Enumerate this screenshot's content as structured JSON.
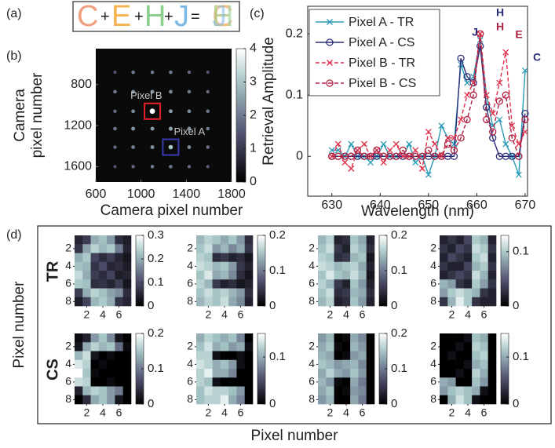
{
  "panel_labels": [
    "(a)",
    "(b)",
    "(c)",
    "(d)"
  ],
  "equation": {
    "letters": [
      {
        "text": "C",
        "color": "#f0a080"
      },
      {
        "text": "E",
        "color": "#f5b450"
      },
      {
        "text": "H",
        "color": "#8ccf8c"
      },
      {
        "text": "J",
        "color": "#7ab8e6"
      }
    ],
    "operators": [
      "+",
      "+",
      "+",
      "="
    ]
  },
  "panel_d": {
    "row_labels": [
      "TR",
      "CS"
    ],
    "xlabel": "Pixel number",
    "ylabel": "Pixel number"
  },
  "chart_data": [
    {
      "type": "spots",
      "xlabel": "Camera pixel number",
      "ylabel": [
        "Camera",
        "pixel number"
      ],
      "x": [
        770,
        930,
        1100,
        1262,
        1425,
        1590
      ],
      "y": [
        680,
        870,
        1060,
        1230,
        1410,
        1600
      ],
      "values": [
        [
          1.5,
          2,
          2,
          2,
          1.8,
          1.5
        ],
        [
          2,
          2.2,
          2.3,
          2.2,
          2,
          1.8
        ],
        [
          1.8,
          2.2,
          4,
          2.4,
          2.2,
          2
        ],
        [
          2,
          2.3,
          2.4,
          2.5,
          2.3,
          2
        ],
        [
          1.8,
          2.1,
          2.3,
          3,
          2.2,
          1.9
        ],
        [
          1.5,
          1.8,
          2,
          2,
          1.8,
          1.6
        ]
      ],
      "xlim": [
        600,
        1800
      ],
      "ylim": [
        450,
        1750
      ],
      "xticks": [
        600,
        1000,
        1400,
        1800
      ],
      "yticks": [
        800,
        1200,
        1600
      ],
      "colorbar": {
        "lim": [
          0,
          4
        ],
        "ticks": [
          0,
          1,
          2,
          3,
          4
        ]
      },
      "markers": [
        {
          "label": "Pixel B",
          "color": "#e8202a"
        },
        {
          "label": "Pixel A",
          "color": "#3a3ab0"
        }
      ]
    },
    {
      "type": "line",
      "xlabel": "Wavelength (nm)",
      "ylabel": "Retrieval Amplitude",
      "x": [
        630,
        631.3,
        632.7,
        634,
        635.3,
        636.7,
        638,
        639.3,
        640.7,
        642,
        643.3,
        644.7,
        646,
        647.3,
        648.7,
        650,
        651.3,
        652.7,
        654,
        655.3,
        656.7,
        658,
        659.3,
        660.7,
        662,
        663.3,
        664.7,
        666,
        667.3,
        668.7,
        670
      ],
      "series": [
        {
          "name": "Pixel A - TR",
          "color": "#2a9bb5",
          "style": "solid",
          "marker": "x",
          "values": [
            0.01,
            0.01,
            0.0,
            0.02,
            0.0,
            0.0,
            -0.01,
            0.0,
            0.02,
            0.0,
            0.0,
            0.0,
            0.02,
            -0.01,
            0.0,
            -0.03,
            0.0,
            0.05,
            0.03,
            0.02,
            0.15,
            0.12,
            0.13,
            0.19,
            0.1,
            0.05,
            0.06,
            0.02,
            0.0,
            -0.03,
            0.14
          ]
        },
        {
          "name": "Pixel A - CS",
          "color": "#2b2d7a",
          "style": "solid",
          "marker": "circle",
          "values": [
            0,
            0,
            0,
            0,
            0,
            0,
            0,
            0,
            0,
            0,
            0,
            0,
            0,
            0,
            0,
            0,
            0,
            0,
            0,
            0,
            0.16,
            0.13,
            0.12,
            0.18,
            0.08,
            0.03,
            0.0,
            0.0,
            0.0,
            0.0,
            0.07
          ]
        },
        {
          "name": "Pixel B - TR",
          "color": "#e0304a",
          "style": "dashed",
          "marker": "x",
          "values": [
            0.0,
            0.02,
            -0.01,
            -0.02,
            0.01,
            0.02,
            0.0,
            0.01,
            -0.01,
            0.01,
            0.02,
            0.0,
            0.0,
            0.01,
            -0.02,
            0.04,
            0.02,
            0.0,
            0.03,
            0.03,
            0.06,
            0.1,
            0.12,
            0.2,
            0.1,
            0.07,
            0.12,
            0.17,
            0.05,
            0.02,
            0.04
          ]
        },
        {
          "name": "Pixel B - CS",
          "color": "#b02040",
          "style": "dashed",
          "marker": "circle",
          "values": [
            0,
            0,
            0,
            0,
            0.01,
            0,
            0,
            0.01,
            0,
            0,
            0,
            0.01,
            0,
            0,
            0,
            0.01,
            0,
            0,
            0.02,
            0.01,
            0.03,
            0.06,
            0.1,
            0.2,
            0.06,
            0.04,
            0.09,
            0.1,
            0.03,
            0,
            0.06
          ]
        }
      ],
      "xlim": [
        625,
        670.5
      ],
      "ylim": [
        -0.065,
        0.245
      ],
      "xticks": [
        630,
        640,
        650,
        660,
        670
      ],
      "yticks": [
        0,
        0.1,
        0.2
      ],
      "legend": "upper left",
      "annotations": [
        {
          "text": "J",
          "color": "#2b2d7a"
        },
        {
          "text": "H",
          "color": "#2b2d7a"
        },
        {
          "text": "H",
          "color": "#b02040"
        },
        {
          "text": "E",
          "color": "#b02040"
        },
        {
          "text": "C",
          "color": "#2b2d7a"
        }
      ]
    },
    {
      "type": "heatmap",
      "xlim": [
        0.5,
        7.5
      ],
      "ylim": [
        0.5,
        8.5
      ],
      "xticks": [
        2,
        4,
        6
      ],
      "yticks": [
        2,
        4,
        6,
        8
      ],
      "colorbar": {
        "lim": [
          0,
          0.3
        ],
        "ticks": [
          0,
          0.1,
          0.2,
          0.3
        ]
      },
      "values": [
        [
          0.05,
          0.08,
          0.2,
          0.22,
          0.18,
          0.06,
          0.04
        ],
        [
          0.07,
          0.19,
          0.24,
          0.21,
          0.23,
          0.15,
          0.05
        ],
        [
          0.2,
          0.23,
          0.09,
          0.06,
          0.08,
          0.05,
          0.03
        ],
        [
          0.22,
          0.21,
          0.07,
          0.1,
          0.05,
          0.06,
          0.04
        ],
        [
          0.25,
          0.2,
          0.08,
          0.06,
          0.09,
          0.04,
          0.05
        ],
        [
          0.23,
          0.22,
          0.06,
          0.07,
          0.05,
          0.08,
          0.03
        ],
        [
          0.08,
          0.2,
          0.24,
          0.22,
          0.19,
          0.17,
          0.06
        ],
        [
          0.04,
          0.09,
          0.21,
          0.23,
          0.2,
          0.07,
          0.05
        ]
      ]
    },
    {
      "type": "heatmap",
      "xlim": [
        0.5,
        7.5
      ],
      "ylim": [
        0.5,
        8.5
      ],
      "xticks": [
        2,
        4,
        6
      ],
      "yticks": [
        2,
        4,
        6,
        8
      ],
      "colorbar": {
        "lim": [
          0,
          0.2
        ],
        "ticks": [
          0,
          0.1,
          0.2
        ]
      },
      "values": [
        [
          0.14,
          0.16,
          0.15,
          0.13,
          0.15,
          0.12,
          0.04
        ],
        [
          0.15,
          0.17,
          0.12,
          0.14,
          0.11,
          0.13,
          0.05
        ],
        [
          0.16,
          0.15,
          0.04,
          0.05,
          0.03,
          0.04,
          0.02
        ],
        [
          0.17,
          0.16,
          0.14,
          0.15,
          0.12,
          0.05,
          0.03
        ],
        [
          0.15,
          0.18,
          0.13,
          0.14,
          0.11,
          0.04,
          0.02
        ],
        [
          0.16,
          0.14,
          0.05,
          0.03,
          0.04,
          0.02,
          0.03
        ],
        [
          0.15,
          0.17,
          0.15,
          0.16,
          0.14,
          0.12,
          0.04
        ],
        [
          0.14,
          0.16,
          0.15,
          0.17,
          0.13,
          0.11,
          0.03
        ]
      ]
    },
    {
      "type": "heatmap",
      "xlim": [
        0.5,
        7.5
      ],
      "ylim": [
        0.5,
        8.5
      ],
      "xticks": [
        2,
        4,
        6
      ],
      "yticks": [
        2,
        4,
        6,
        8
      ],
      "colorbar": {
        "lim": [
          0,
          0.2
        ],
        "ticks": [
          0,
          0.1,
          0.2
        ]
      },
      "values": [
        [
          0.14,
          0.16,
          0.03,
          0.04,
          0.15,
          0.13,
          0.03
        ],
        [
          0.15,
          0.17,
          0.05,
          0.03,
          0.16,
          0.14,
          0.04
        ],
        [
          0.16,
          0.15,
          0.04,
          0.05,
          0.14,
          0.15,
          0.02
        ],
        [
          0.17,
          0.16,
          0.14,
          0.15,
          0.16,
          0.13,
          0.03
        ],
        [
          0.15,
          0.18,
          0.15,
          0.14,
          0.17,
          0.14,
          0.02
        ],
        [
          0.16,
          0.14,
          0.05,
          0.03,
          0.15,
          0.12,
          0.03
        ],
        [
          0.15,
          0.17,
          0.04,
          0.05,
          0.14,
          0.13,
          0.04
        ],
        [
          0.14,
          0.16,
          0.03,
          0.04,
          0.15,
          0.12,
          0.03
        ]
      ]
    },
    {
      "type": "heatmap",
      "xlim": [
        0.5,
        7.5
      ],
      "ylim": [
        0.5,
        8.5
      ],
      "xticks": [
        2,
        4,
        6
      ],
      "yticks": [
        2,
        4,
        6,
        8
      ],
      "colorbar": {
        "lim": [
          0,
          0.13
        ],
        "ticks": [
          0,
          0.1
        ]
      },
      "values": [
        [
          0.02,
          0.03,
          0.02,
          0.04,
          0.1,
          0.09,
          0.02
        ],
        [
          0.03,
          0.02,
          0.04,
          0.03,
          0.11,
          0.1,
          0.03
        ],
        [
          0.02,
          0.04,
          0.03,
          0.02,
          0.1,
          0.11,
          0.02
        ],
        [
          0.03,
          0.02,
          0.02,
          0.04,
          0.09,
          0.1,
          0.03
        ],
        [
          0.02,
          0.03,
          0.04,
          0.03,
          0.11,
          0.09,
          0.02
        ],
        [
          0.09,
          0.08,
          0.03,
          0.02,
          0.1,
          0.08,
          0.03
        ],
        [
          0.08,
          0.1,
          0.11,
          0.1,
          0.09,
          0.03,
          0.02
        ],
        [
          0.03,
          0.09,
          0.12,
          0.1,
          0.03,
          0.02,
          0.02
        ]
      ]
    },
    {
      "type": "heatmap",
      "xlim": [
        0.5,
        7.5
      ],
      "ylim": [
        0.5,
        8.5
      ],
      "xticks": [
        2,
        4,
        6
      ],
      "yticks": [
        2,
        4,
        6,
        8
      ],
      "colorbar": {
        "lim": [
          0,
          0.2
        ],
        "ticks": [
          0,
          0.1,
          0.2
        ]
      },
      "values": [
        [
          0.01,
          0.03,
          0.12,
          0.15,
          0.11,
          0.02,
          0.0
        ],
        [
          0.02,
          0.13,
          0.16,
          0.14,
          0.15,
          0.09,
          0.01
        ],
        [
          0.14,
          0.17,
          0.02,
          0.0,
          0.01,
          0.0,
          0.0
        ],
        [
          0.18,
          0.16,
          0.0,
          0.01,
          0.0,
          0.0,
          0.0
        ],
        [
          0.2,
          0.15,
          0.01,
          0.0,
          0.0,
          0.0,
          0.0
        ],
        [
          0.17,
          0.16,
          0.0,
          0.0,
          0.01,
          0.0,
          0.0
        ],
        [
          0.03,
          0.14,
          0.16,
          0.15,
          0.12,
          0.1,
          0.0
        ],
        [
          0.0,
          0.04,
          0.13,
          0.15,
          0.12,
          0.02,
          0.0
        ]
      ]
    },
    {
      "type": "heatmap",
      "xlim": [
        0.5,
        7.5
      ],
      "ylim": [
        0.5,
        8.5
      ],
      "xticks": [
        2,
        4,
        6
      ],
      "yticks": [
        2,
        4,
        6,
        8
      ],
      "colorbar": {
        "lim": [
          0,
          0.15
        ],
        "ticks": [
          0,
          0.1
        ]
      },
      "values": [
        [
          0.1,
          0.12,
          0.11,
          0.1,
          0.11,
          0.08,
          0.0
        ],
        [
          0.11,
          0.13,
          0.1,
          0.11,
          0.09,
          0.1,
          0.01
        ],
        [
          0.12,
          0.12,
          0.01,
          0.0,
          0.0,
          0.01,
          0.0
        ],
        [
          0.13,
          0.12,
          0.1,
          0.11,
          0.09,
          0.01,
          0.0
        ],
        [
          0.12,
          0.14,
          0.1,
          0.1,
          0.08,
          0.0,
          0.0
        ],
        [
          0.12,
          0.11,
          0.01,
          0.0,
          0.0,
          0.0,
          0.0
        ],
        [
          0.11,
          0.13,
          0.12,
          0.12,
          0.11,
          0.09,
          0.0
        ],
        [
          0.11,
          0.12,
          0.12,
          0.14,
          0.1,
          0.08,
          0.0
        ]
      ]
    },
    {
      "type": "heatmap",
      "xlim": [
        0.5,
        7.5
      ],
      "ylim": [
        0.5,
        8.5
      ],
      "xticks": [
        2,
        4,
        6
      ],
      "yticks": [
        2,
        4,
        6,
        8
      ],
      "colorbar": {
        "lim": [
          0,
          0.2
        ],
        "ticks": [
          0,
          0.1,
          0.2
        ]
      },
      "values": [
        [
          0.12,
          0.14,
          0.0,
          0.01,
          0.13,
          0.11,
          0.0
        ],
        [
          0.13,
          0.15,
          0.01,
          0.0,
          0.14,
          0.12,
          0.0
        ],
        [
          0.14,
          0.13,
          0.0,
          0.01,
          0.12,
          0.13,
          0.0
        ],
        [
          0.15,
          0.14,
          0.12,
          0.13,
          0.14,
          0.11,
          0.0
        ],
        [
          0.13,
          0.16,
          0.13,
          0.12,
          0.15,
          0.12,
          0.0
        ],
        [
          0.14,
          0.12,
          0.01,
          0.0,
          0.13,
          0.1,
          0.0
        ],
        [
          0.13,
          0.15,
          0.0,
          0.01,
          0.12,
          0.11,
          0.0
        ],
        [
          0.12,
          0.14,
          0.0,
          0.0,
          0.13,
          0.1,
          0.0
        ]
      ]
    },
    {
      "type": "heatmap",
      "xlim": [
        0.5,
        7.5
      ],
      "ylim": [
        0.5,
        8.5
      ],
      "xticks": [
        2,
        4,
        6
      ],
      "yticks": [
        2,
        4,
        6,
        8
      ],
      "colorbar": {
        "lim": [
          0,
          0.15
        ],
        "ticks": [
          0,
          0.1
        ]
      },
      "values": [
        [
          0.0,
          0.0,
          0.0,
          0.01,
          0.11,
          0.1,
          0.0
        ],
        [
          0.0,
          0.0,
          0.01,
          0.0,
          0.12,
          0.11,
          0.0
        ],
        [
          0.0,
          0.01,
          0.0,
          0.0,
          0.11,
          0.12,
          0.0
        ],
        [
          0.0,
          0.0,
          0.0,
          0.01,
          0.1,
          0.11,
          0.0
        ],
        [
          0.0,
          0.0,
          0.01,
          0.0,
          0.12,
          0.1,
          0.0
        ],
        [
          0.1,
          0.09,
          0.0,
          0.0,
          0.11,
          0.09,
          0.0
        ],
        [
          0.09,
          0.11,
          0.12,
          0.11,
          0.1,
          0.01,
          0.0
        ],
        [
          0.0,
          0.1,
          0.13,
          0.11,
          0.01,
          0.0,
          0.0
        ]
      ]
    }
  ]
}
